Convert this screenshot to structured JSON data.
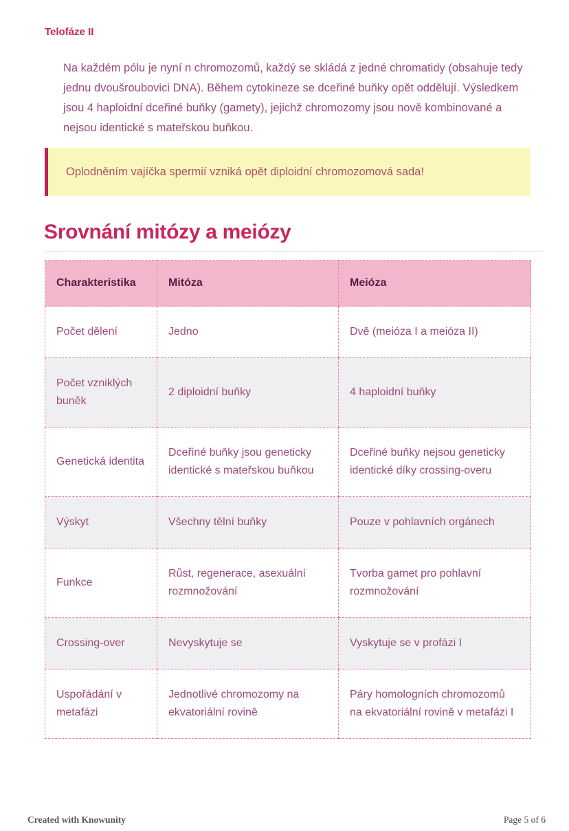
{
  "page": {
    "section_heading": "Telofáze II",
    "paragraph": "Na každém pólu je nyní n chromozomů, každý se skládá z jedné chromatidy (obsahuje tedy jednu dvoušroubovici DNA). Během cytokineze se dceřiné buňky opět oddělují. Výsledkem jsou 4 haploidní dceřiné buňky (gamety), jejichž chromozomy jsou nově kombinované a nejsou identické s mateřskou buňkou.",
    "callout_text": "Oplodněním vajíčka spermií vzniká opět diploidní chromozomová sada!",
    "main_heading": "Srovnání mitózy a meiózy"
  },
  "table": {
    "headers": [
      "Charakteristika",
      "Mitóza",
      "Meióza"
    ],
    "rows": [
      [
        "Počet dělení",
        "Jedno",
        "Dvě (meióza I a meióza II)"
      ],
      [
        "Počet vzniklých buněk",
        "2 diploidní buňky",
        "4 haploidní buňky"
      ],
      [
        "Genetická identita",
        "Dceřiné buňky jsou geneticky identické s mateřskou buňkou",
        "Dceřiné buňky nejsou geneticky identické díky crossing-overu"
      ],
      [
        "Výskyt",
        "Všechny tělní buňky",
        "Pouze v pohlavních orgánech"
      ],
      [
        "Funkce",
        "Růst, regenerace, asexuální rozmnožování",
        "Tvorba gamet pro pohlavní rozmnožování"
      ],
      [
        "Crossing-over",
        "Nevyskytuje se",
        "Vyskytuje se v profázi I"
      ],
      [
        "Uspořádání v metafázi",
        "Jednotlivé chromozomy na ekvatoriální rovině",
        "Páry homologních chromozomů na ekvatoriální rovině v metafázi I"
      ]
    ]
  },
  "footer": {
    "branding": "Created with Knowunity",
    "page_number": "Page 5 of 6"
  },
  "colors": {
    "heading": "#c9265e",
    "body_text": "#9c4b77",
    "table_header_bg": "#f3b7cd",
    "table_header_text": "#5d1a44",
    "table_border": "#e8809f",
    "row_alt_bg": "#efeff1",
    "callout_bg": "#faf7bd",
    "callout_border": "#bf2357",
    "callout_text": "#af5168"
  }
}
